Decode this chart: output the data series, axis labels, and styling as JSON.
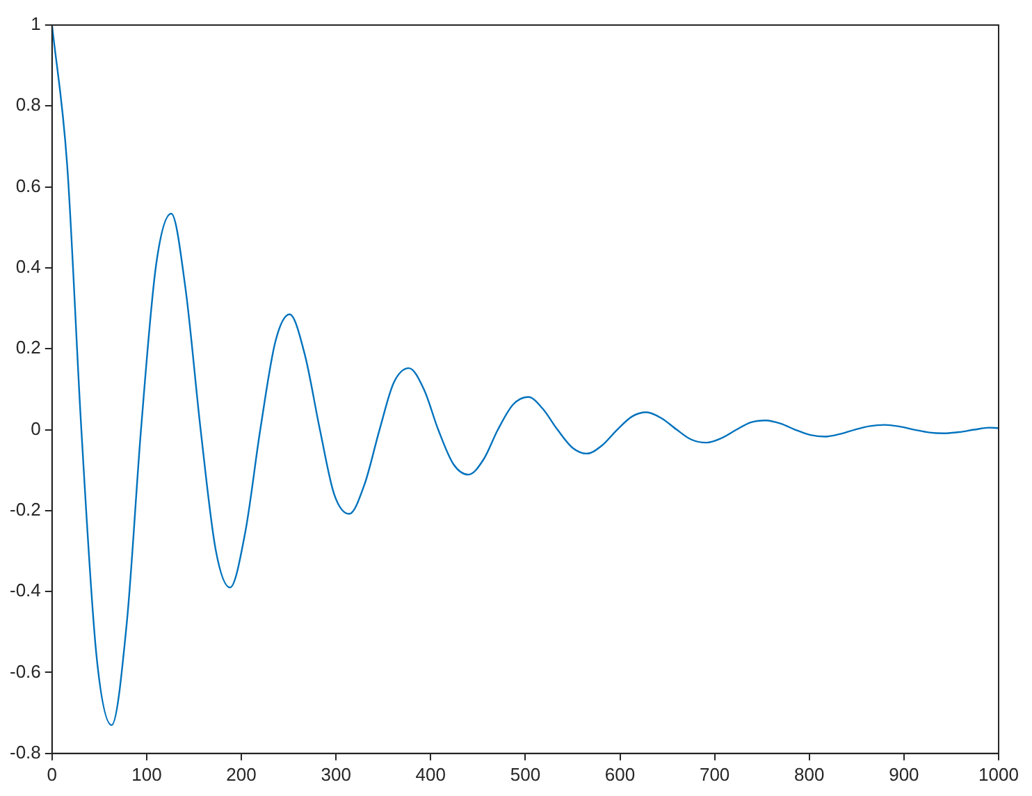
{
  "chart_data": {
    "type": "line",
    "x": [
      0,
      16,
      31,
      47,
      63,
      79,
      94,
      110,
      126,
      141,
      157,
      173,
      188,
      204,
      220,
      236,
      251,
      267,
      283,
      298,
      314,
      330,
      346,
      361,
      377,
      393,
      408,
      424,
      440,
      456,
      471,
      487,
      503,
      518,
      534,
      550,
      565,
      581,
      597,
      613,
      628,
      644,
      660,
      675,
      691,
      707,
      723,
      738,
      754,
      770,
      785,
      801,
      817,
      832,
      848,
      864,
      880,
      895,
      911,
      927,
      942,
      958,
      974,
      990,
      1000
    ],
    "series": [
      {
        "color": "#0072bd",
        "values": [
          1,
          0.654,
          0,
          -0.559,
          -0.73,
          -0.477,
          0,
          0.408,
          0.534,
          0.349,
          0,
          -0.298,
          -0.39,
          -0.255,
          0,
          0.218,
          0.285,
          0.186,
          0,
          -0.159,
          -0.208,
          -0.136,
          0,
          0.116,
          0.152,
          0.099,
          0,
          -0.085,
          -0.111,
          -0.073,
          0,
          0.062,
          0.081,
          0.053,
          0,
          -0.045,
          -0.059,
          -0.039,
          0,
          0.033,
          0.043,
          0.028,
          0,
          -0.024,
          -0.032,
          -0.021,
          0,
          0.018,
          0.023,
          0.015,
          0,
          -0.013,
          -0.017,
          -0.011,
          0,
          0.009,
          0.012,
          0.008,
          0,
          -0.007,
          -0.009,
          -0.006,
          0,
          0.005,
          0.004
        ]
      }
    ],
    "xlim": [
      0,
      1000
    ],
    "xticks": [
      0,
      100,
      200,
      300,
      400,
      500,
      600,
      700,
      800,
      900,
      1000
    ],
    "ylim": [
      -0.8,
      1
    ],
    "yticks": [
      -0.8,
      -0.6,
      -0.4,
      -0.2,
      0,
      0.2,
      0.4,
      0.6,
      0.8,
      1
    ],
    "grid": false,
    "legend": false,
    "marker": "none",
    "line_style": "solid"
  }
}
